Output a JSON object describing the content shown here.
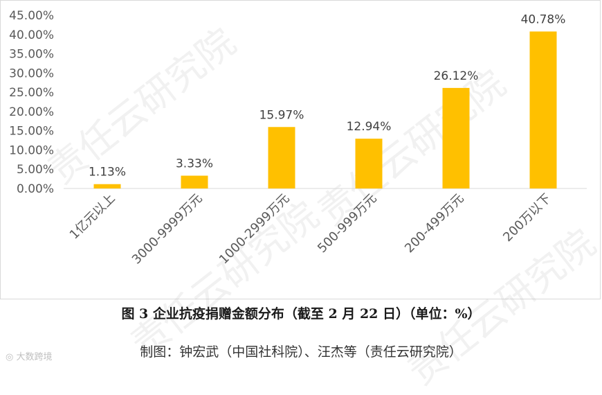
{
  "chart_data": {
    "type": "bar",
    "categories": [
      "1亿元以上",
      "3000-9999万元",
      "1000-2999万元",
      "500-999万元",
      "200-499万元",
      "200万以下"
    ],
    "values": [
      1.13,
      3.33,
      15.97,
      12.94,
      26.12,
      40.78
    ],
    "data_labels": [
      "1.13%",
      "3.33%",
      "15.97%",
      "12.94%",
      "26.12%",
      "40.78%"
    ],
    "y_ticks": [
      "0.00%",
      "5.00%",
      "10.00%",
      "15.00%",
      "20.00%",
      "25.00%",
      "30.00%",
      "35.00%",
      "40.00%",
      "45.00%"
    ],
    "ylim": [
      0,
      45
    ],
    "grid": false,
    "bar_color": "#FFC000",
    "title": "",
    "xlabel": "",
    "ylabel": ""
  },
  "caption": "图 3  企业抗疫捐赠金额分布（截至 2 月 22 日）（单位：%）",
  "credit": "制图：钟宏武（中国社科院）、汪杰等（责任云研究院）",
  "watermark": "责任云研究院",
  "source_mark": "大数跨境"
}
